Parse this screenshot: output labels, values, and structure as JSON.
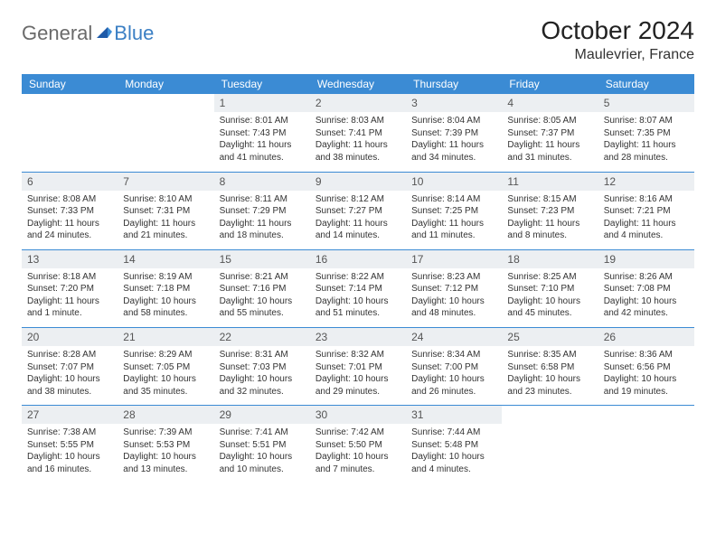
{
  "logo": {
    "word1": "General",
    "word2": "Blue"
  },
  "title": "October 2024",
  "location": "Maulevrier, France",
  "colors": {
    "header_bg": "#3b8bd4",
    "header_text": "#ffffff",
    "row_divider": "#3b8bd4",
    "daynum_bg": "#eceff2",
    "logo_gray": "#6a6a6a",
    "logo_blue": "#3b7fc4"
  },
  "day_headers": [
    "Sunday",
    "Monday",
    "Tuesday",
    "Wednesday",
    "Thursday",
    "Friday",
    "Saturday"
  ],
  "weeks": [
    [
      null,
      null,
      {
        "n": "1",
        "sr": "Sunrise: 8:01 AM",
        "ss": "Sunset: 7:43 PM",
        "dl": "Daylight: 11 hours and 41 minutes."
      },
      {
        "n": "2",
        "sr": "Sunrise: 8:03 AM",
        "ss": "Sunset: 7:41 PM",
        "dl": "Daylight: 11 hours and 38 minutes."
      },
      {
        "n": "3",
        "sr": "Sunrise: 8:04 AM",
        "ss": "Sunset: 7:39 PM",
        "dl": "Daylight: 11 hours and 34 minutes."
      },
      {
        "n": "4",
        "sr": "Sunrise: 8:05 AM",
        "ss": "Sunset: 7:37 PM",
        "dl": "Daylight: 11 hours and 31 minutes."
      },
      {
        "n": "5",
        "sr": "Sunrise: 8:07 AM",
        "ss": "Sunset: 7:35 PM",
        "dl": "Daylight: 11 hours and 28 minutes."
      }
    ],
    [
      {
        "n": "6",
        "sr": "Sunrise: 8:08 AM",
        "ss": "Sunset: 7:33 PM",
        "dl": "Daylight: 11 hours and 24 minutes."
      },
      {
        "n": "7",
        "sr": "Sunrise: 8:10 AM",
        "ss": "Sunset: 7:31 PM",
        "dl": "Daylight: 11 hours and 21 minutes."
      },
      {
        "n": "8",
        "sr": "Sunrise: 8:11 AM",
        "ss": "Sunset: 7:29 PM",
        "dl": "Daylight: 11 hours and 18 minutes."
      },
      {
        "n": "9",
        "sr": "Sunrise: 8:12 AM",
        "ss": "Sunset: 7:27 PM",
        "dl": "Daylight: 11 hours and 14 minutes."
      },
      {
        "n": "10",
        "sr": "Sunrise: 8:14 AM",
        "ss": "Sunset: 7:25 PM",
        "dl": "Daylight: 11 hours and 11 minutes."
      },
      {
        "n": "11",
        "sr": "Sunrise: 8:15 AM",
        "ss": "Sunset: 7:23 PM",
        "dl": "Daylight: 11 hours and 8 minutes."
      },
      {
        "n": "12",
        "sr": "Sunrise: 8:16 AM",
        "ss": "Sunset: 7:21 PM",
        "dl": "Daylight: 11 hours and 4 minutes."
      }
    ],
    [
      {
        "n": "13",
        "sr": "Sunrise: 8:18 AM",
        "ss": "Sunset: 7:20 PM",
        "dl": "Daylight: 11 hours and 1 minute."
      },
      {
        "n": "14",
        "sr": "Sunrise: 8:19 AM",
        "ss": "Sunset: 7:18 PM",
        "dl": "Daylight: 10 hours and 58 minutes."
      },
      {
        "n": "15",
        "sr": "Sunrise: 8:21 AM",
        "ss": "Sunset: 7:16 PM",
        "dl": "Daylight: 10 hours and 55 minutes."
      },
      {
        "n": "16",
        "sr": "Sunrise: 8:22 AM",
        "ss": "Sunset: 7:14 PM",
        "dl": "Daylight: 10 hours and 51 minutes."
      },
      {
        "n": "17",
        "sr": "Sunrise: 8:23 AM",
        "ss": "Sunset: 7:12 PM",
        "dl": "Daylight: 10 hours and 48 minutes."
      },
      {
        "n": "18",
        "sr": "Sunrise: 8:25 AM",
        "ss": "Sunset: 7:10 PM",
        "dl": "Daylight: 10 hours and 45 minutes."
      },
      {
        "n": "19",
        "sr": "Sunrise: 8:26 AM",
        "ss": "Sunset: 7:08 PM",
        "dl": "Daylight: 10 hours and 42 minutes."
      }
    ],
    [
      {
        "n": "20",
        "sr": "Sunrise: 8:28 AM",
        "ss": "Sunset: 7:07 PM",
        "dl": "Daylight: 10 hours and 38 minutes."
      },
      {
        "n": "21",
        "sr": "Sunrise: 8:29 AM",
        "ss": "Sunset: 7:05 PM",
        "dl": "Daylight: 10 hours and 35 minutes."
      },
      {
        "n": "22",
        "sr": "Sunrise: 8:31 AM",
        "ss": "Sunset: 7:03 PM",
        "dl": "Daylight: 10 hours and 32 minutes."
      },
      {
        "n": "23",
        "sr": "Sunrise: 8:32 AM",
        "ss": "Sunset: 7:01 PM",
        "dl": "Daylight: 10 hours and 29 minutes."
      },
      {
        "n": "24",
        "sr": "Sunrise: 8:34 AM",
        "ss": "Sunset: 7:00 PM",
        "dl": "Daylight: 10 hours and 26 minutes."
      },
      {
        "n": "25",
        "sr": "Sunrise: 8:35 AM",
        "ss": "Sunset: 6:58 PM",
        "dl": "Daylight: 10 hours and 23 minutes."
      },
      {
        "n": "26",
        "sr": "Sunrise: 8:36 AM",
        "ss": "Sunset: 6:56 PM",
        "dl": "Daylight: 10 hours and 19 minutes."
      }
    ],
    [
      {
        "n": "27",
        "sr": "Sunrise: 7:38 AM",
        "ss": "Sunset: 5:55 PM",
        "dl": "Daylight: 10 hours and 16 minutes."
      },
      {
        "n": "28",
        "sr": "Sunrise: 7:39 AM",
        "ss": "Sunset: 5:53 PM",
        "dl": "Daylight: 10 hours and 13 minutes."
      },
      {
        "n": "29",
        "sr": "Sunrise: 7:41 AM",
        "ss": "Sunset: 5:51 PM",
        "dl": "Daylight: 10 hours and 10 minutes."
      },
      {
        "n": "30",
        "sr": "Sunrise: 7:42 AM",
        "ss": "Sunset: 5:50 PM",
        "dl": "Daylight: 10 hours and 7 minutes."
      },
      {
        "n": "31",
        "sr": "Sunrise: 7:44 AM",
        "ss": "Sunset: 5:48 PM",
        "dl": "Daylight: 10 hours and 4 minutes."
      },
      null,
      null
    ]
  ]
}
